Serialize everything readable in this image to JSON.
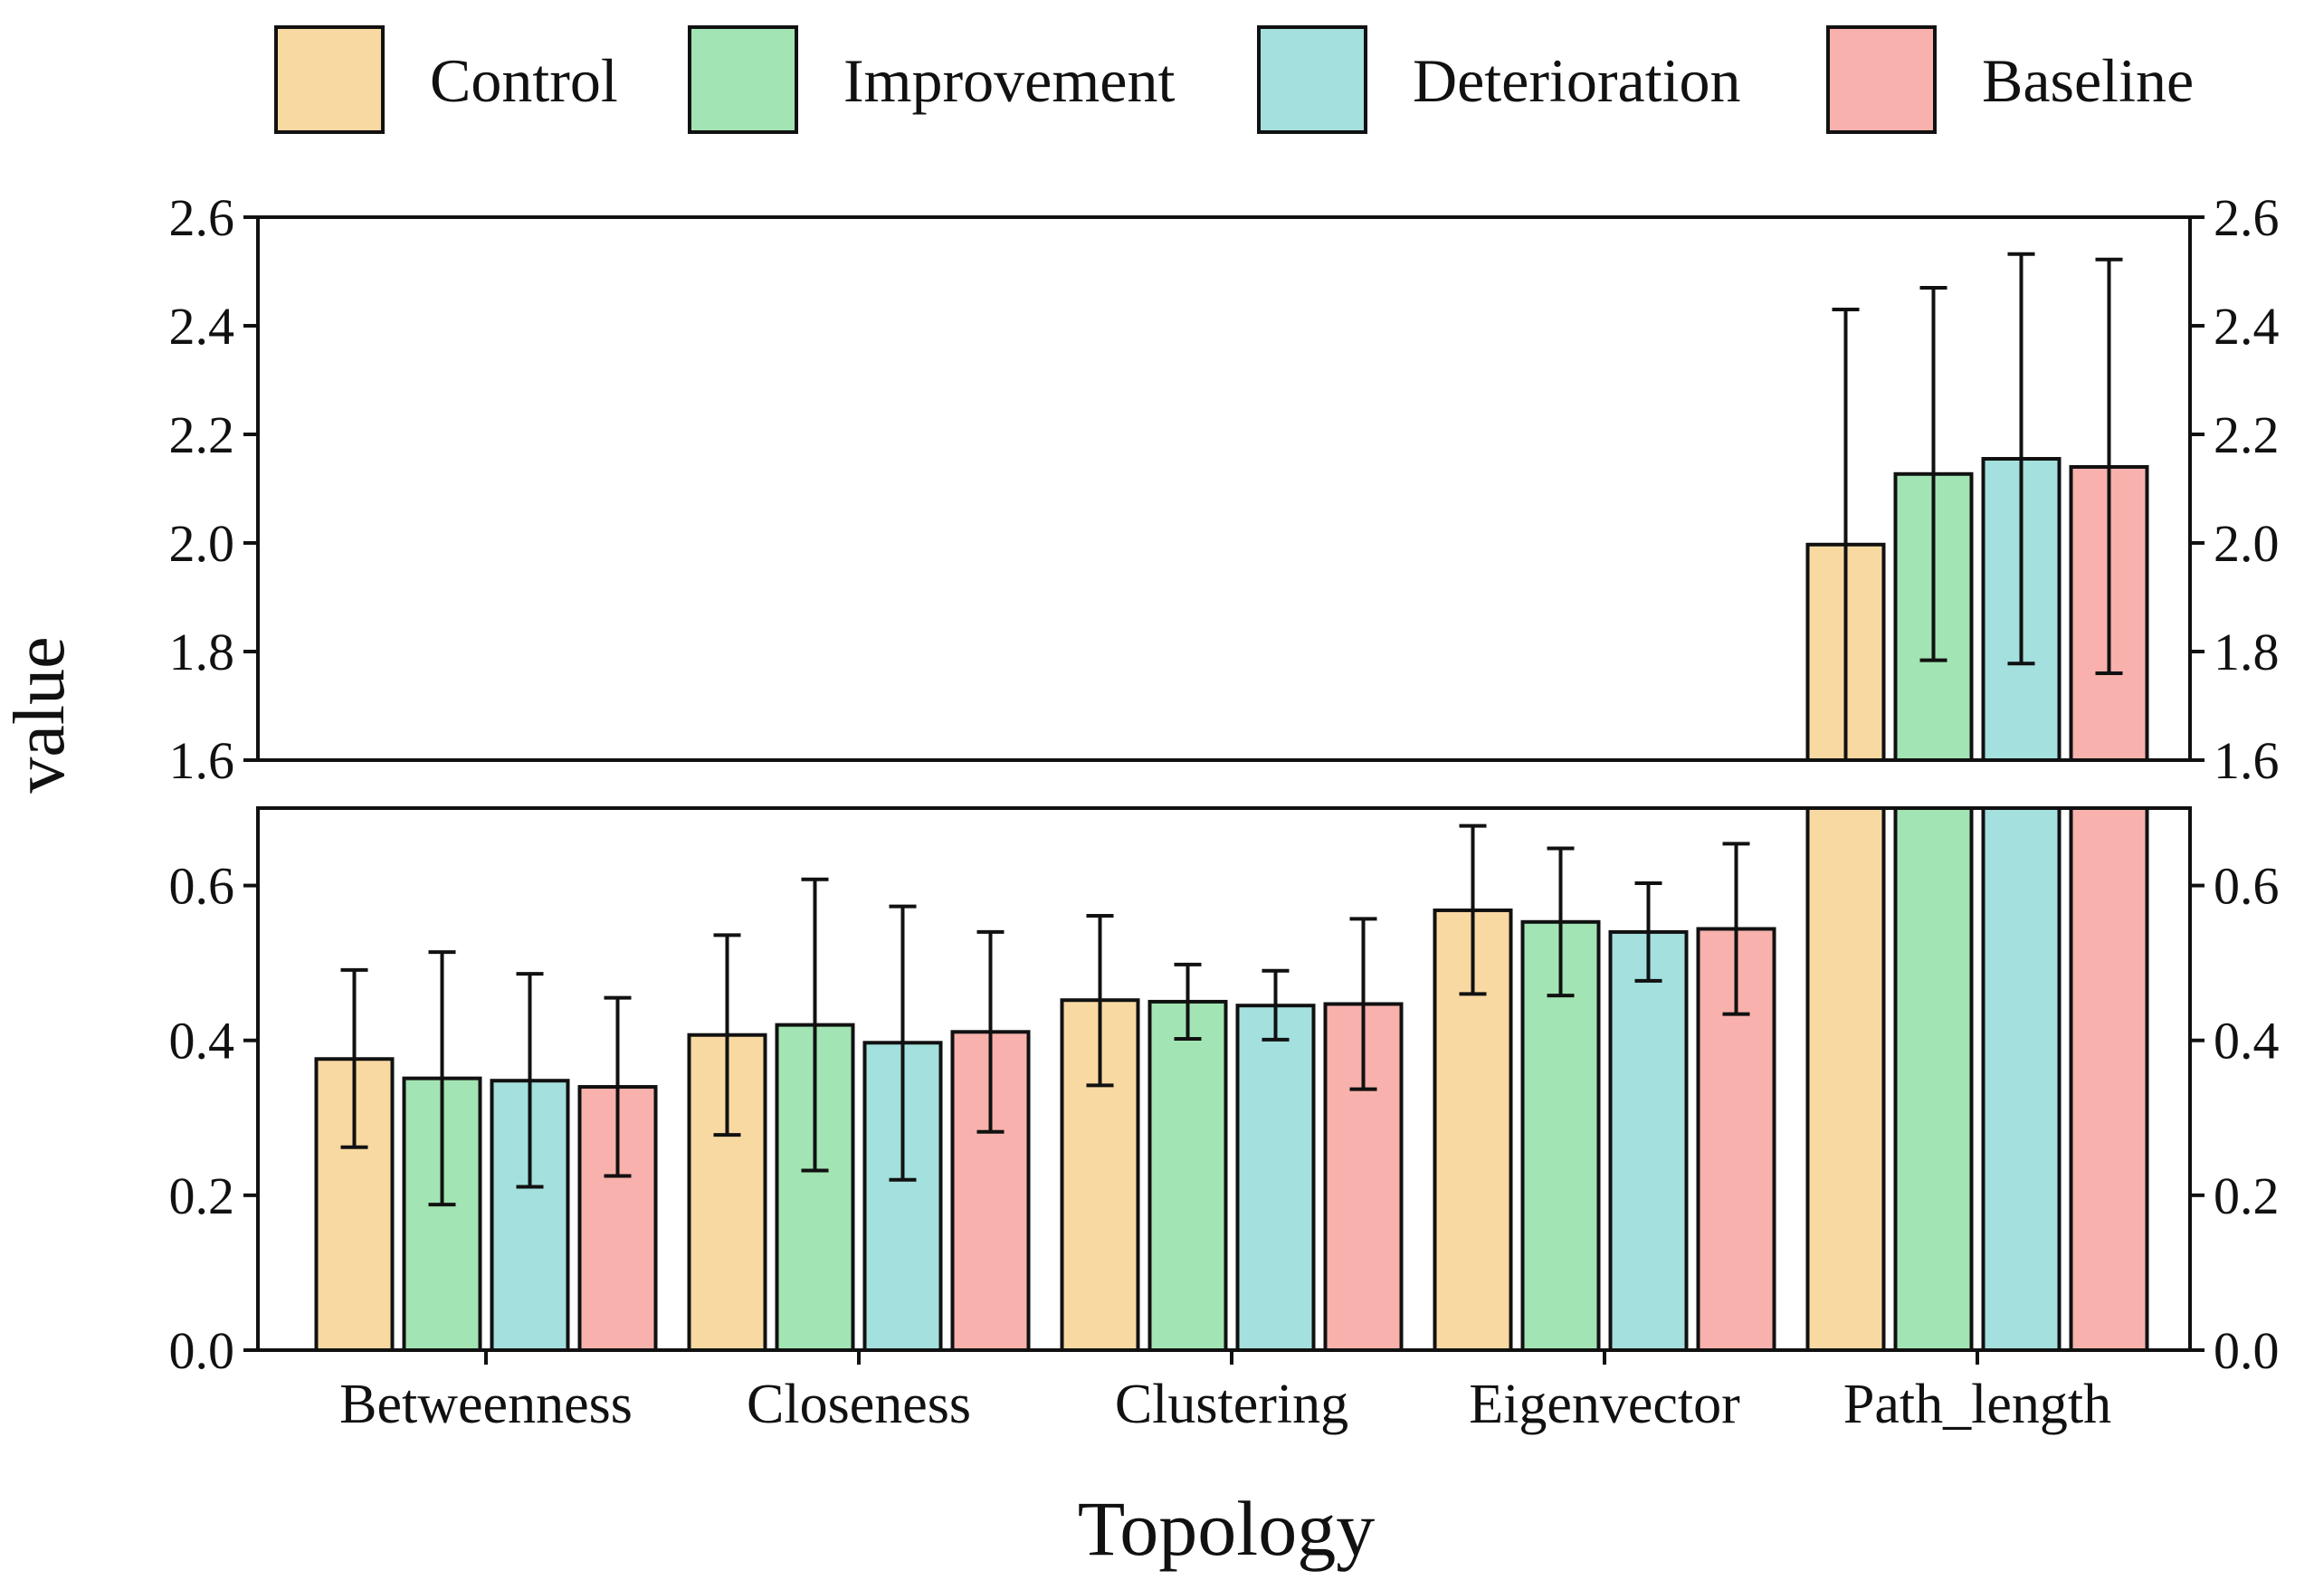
{
  "chart_data": {
    "type": "bar",
    "xlabel": "Topology",
    "ylabel": "value",
    "categories": [
      "Betweenness",
      "Closeness",
      "Clustering",
      "Eigenvector",
      "Path_length"
    ],
    "series": [
      {
        "name": "Control",
        "color": "#F9D9A2",
        "values": [
          0.376,
          0.407,
          0.452,
          0.568,
          1.997
        ],
        "err_low": [
          0.262,
          0.278,
          0.342,
          0.46,
          1.6
        ],
        "err_high": [
          0.491,
          0.536,
          0.561,
          0.677,
          2.43
        ]
      },
      {
        "name": "Improvement",
        "color": "#A2E4B3",
        "values": [
          0.351,
          0.42,
          0.45,
          0.553,
          2.127
        ],
        "err_low": [
          0.188,
          0.232,
          0.402,
          0.458,
          1.784
        ],
        "err_high": [
          0.514,
          0.608,
          0.498,
          0.648,
          2.47
        ]
      },
      {
        "name": "Deterioration",
        "color": "#A3E0DE",
        "values": [
          0.348,
          0.397,
          0.445,
          0.54,
          2.155
        ],
        "err_low": [
          0.211,
          0.22,
          0.401,
          0.477,
          1.778
        ],
        "err_high": [
          0.486,
          0.573,
          0.49,
          0.603,
          2.532
        ]
      },
      {
        "name": "Baseline",
        "color": "#F8B1AC",
        "values": [
          0.34,
          0.411,
          0.447,
          0.544,
          2.14
        ],
        "err_low": [
          0.225,
          0.282,
          0.337,
          0.434,
          1.76
        ],
        "err_high": [
          0.455,
          0.54,
          0.557,
          0.654,
          2.522
        ]
      }
    ],
    "axis_break": {
      "upper": {
        "ylim": [
          1.6,
          2.6
        ],
        "ticks": [
          "1.6",
          "1.8",
          "2.0",
          "2.2",
          "2.4",
          "2.6"
        ]
      },
      "lower": {
        "ylim": [
          0.0,
          0.7
        ],
        "ticks": [
          "0.0",
          "0.2",
          "0.4",
          "0.6"
        ]
      }
    },
    "legend": {
      "position": "top",
      "entries": [
        "Control",
        "Improvement",
        "Deterioration",
        "Baseline"
      ]
    },
    "grid": false
  }
}
